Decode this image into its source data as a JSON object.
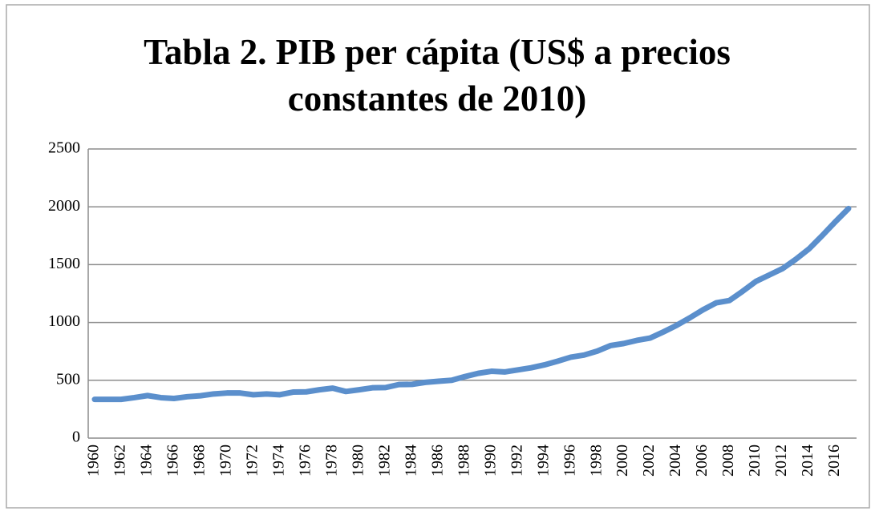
{
  "chart_data": {
    "type": "line",
    "title": "Tabla 2. PIB per cápita (US$ a precios constantes de 2010)",
    "categories": [
      "1960",
      null,
      "1962",
      null,
      "1964",
      null,
      "1966",
      null,
      "1968",
      null,
      "1970",
      null,
      "1972",
      null,
      "1974",
      null,
      "1976",
      null,
      "1978",
      null,
      "1980",
      null,
      "1982",
      null,
      "1984",
      null,
      "1986",
      null,
      "1988",
      null,
      "1990",
      null,
      "1992",
      null,
      "1994",
      null,
      "1996",
      null,
      "1998",
      null,
      "2000",
      null,
      "2002",
      null,
      "2004",
      null,
      "2006",
      null,
      "2008",
      null,
      "2010",
      null,
      "2012",
      null,
      "2014",
      null,
      "2016",
      null
    ],
    "series": [
      {
        "name": "PIB per cápita",
        "color": "#5b8fcc",
        "values": [
          335,
          335,
          335,
          350,
          368,
          350,
          343,
          358,
          366,
          382,
          390,
          390,
          375,
          382,
          375,
          398,
          400,
          418,
          432,
          403,
          418,
          435,
          437,
          463,
          465,
          482,
          492,
          500,
          532,
          560,
          578,
          572,
          590,
          608,
          633,
          665,
          700,
          718,
          752,
          800,
          818,
          845,
          865,
          918,
          975,
          1040,
          1110,
          1170,
          1190,
          1270,
          1355,
          1410,
          1465,
          1545,
          1635,
          1750,
          1870,
          1985
        ]
      }
    ],
    "ylim": [
      0,
      2500
    ],
    "yticks": [
      0,
      500,
      1000,
      1500,
      2000,
      2500
    ],
    "grid": true
  }
}
